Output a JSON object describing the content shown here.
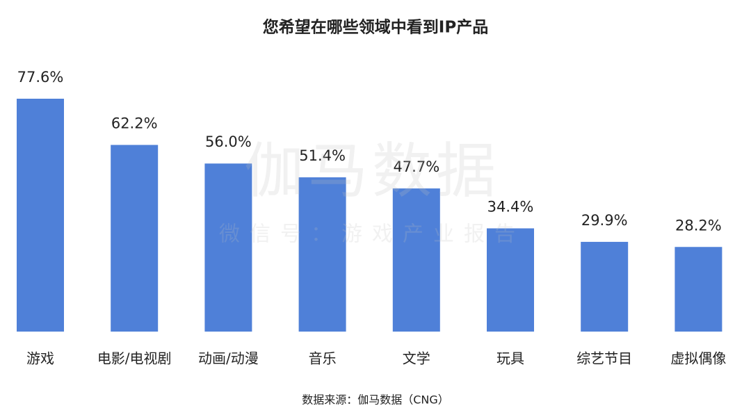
{
  "chart_data": {
    "type": "bar",
    "title": "您希望在哪些领域中看到IP产品",
    "categories": [
      "游戏",
      "电影/电视剧",
      "动画/动漫",
      "音乐",
      "文学",
      "玩具",
      "综艺节目",
      "虚拟偶像"
    ],
    "values": [
      77.6,
      62.2,
      56.0,
      51.4,
      47.7,
      34.4,
      29.9,
      28.2
    ],
    "value_labels": [
      "77.6%",
      "62.2%",
      "56.0%",
      "51.4%",
      "47.7%",
      "34.4%",
      "29.9%",
      "28.2%"
    ],
    "color": "#4f80d8",
    "source": "数据来源：伽马数据（CNG）",
    "watermark": "伽马数据",
    "watermark_subtitle": "微信号：游戏产业报告"
  }
}
